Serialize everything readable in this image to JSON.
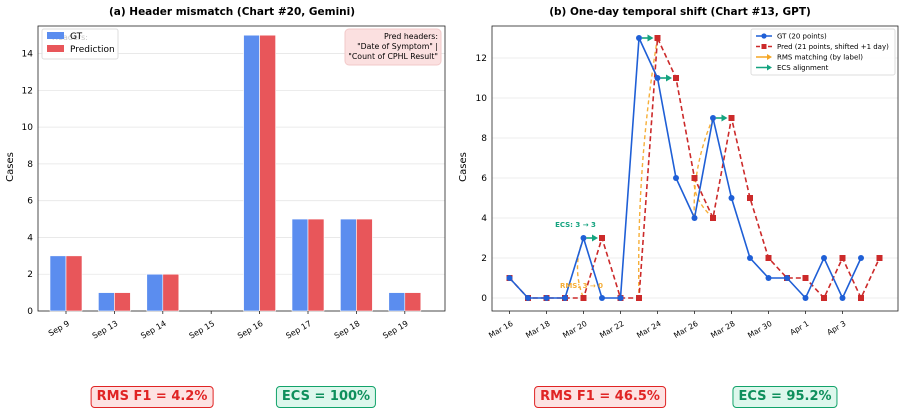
{
  "colors": {
    "gt": "#1f5fd6",
    "gt_bar": "#5b8def",
    "pred": "#cc2a2a",
    "pred_bar": "#e8565a",
    "rms": "#f5a623",
    "ecs": "#14a37f"
  },
  "chart_data": [
    {
      "type": "bar",
      "title": "(a) Header mismatch (Chart #20, Gemini)",
      "ylabel": "Cases",
      "ylim": [
        0,
        15.5
      ],
      "yticks": [
        0,
        2,
        4,
        6,
        8,
        10,
        12,
        14
      ],
      "grid": true,
      "legend_position": "top-left",
      "categories": [
        "Sep 9",
        "Sep 13",
        "Sep 14",
        "Sep 15",
        "Sep 16",
        "Sep 17",
        "Sep 18",
        "Sep 19"
      ],
      "series": [
        {
          "name": "GT",
          "values": [
            3,
            1,
            2,
            0,
            15,
            5,
            5,
            1
          ]
        },
        {
          "name": "Prediction",
          "values": [
            3,
            1,
            2,
            0,
            15,
            5,
            5,
            1
          ]
        }
      ],
      "legend_ghost": "Headers:",
      "annotation": "Pred headers:\n\"Date of Symptom\" |\n\"Count of CPHL Result\"",
      "metrics": {
        "rms": "RMS F1 = 4.2%",
        "ecs": "ECS = 100%"
      }
    },
    {
      "type": "line",
      "title": "(b) One-day temporal shift (Chart #13, GPT)",
      "ylabel": "Cases",
      "ylim": [
        -0.65,
        13.6
      ],
      "yticks": [
        0,
        2,
        4,
        6,
        8,
        10,
        12
      ],
      "grid": true,
      "legend_position": "top-right",
      "x_ticks": [
        "Mar 16",
        "Mar 18",
        "Mar 20",
        "Mar 22",
        "Mar 24",
        "Mar 26",
        "Mar 28",
        "Mar 30",
        "Apr 1",
        "Apr 3"
      ],
      "series": [
        {
          "name": "GT (20 points)",
          "x": [
            "Mar 16",
            "Mar 17",
            "Mar 18",
            "Mar 19",
            "Mar 20",
            "Mar 21",
            "Mar 22",
            "Mar 23",
            "Mar 24",
            "Mar 25",
            "Mar 26",
            "Mar 27",
            "Mar 28",
            "Mar 29",
            "Mar 30",
            "Mar 31",
            "Apr 1",
            "Apr 2",
            "Apr 3",
            "Apr 4"
          ],
          "values": [
            1,
            0,
            0,
            0,
            3,
            0,
            0,
            13,
            11,
            6,
            4,
            9,
            5,
            2,
            1,
            1,
            0,
            2,
            0,
            2
          ]
        },
        {
          "name": "Pred (21 points, shifted +1 day)",
          "x": [
            "Mar 16",
            "Mar 17",
            "Mar 18",
            "Mar 19",
            "Mar 20",
            "Mar 21",
            "Mar 22",
            "Mar 23",
            "Mar 24",
            "Mar 25",
            "Mar 26",
            "Mar 27",
            "Mar 28",
            "Mar 29",
            "Mar 30",
            "Mar 31",
            "Apr 1",
            "Apr 2",
            "Apr 3",
            "Apr 4",
            "Apr 5"
          ],
          "values": [
            1,
            0,
            0,
            0,
            0,
            3,
            0,
            0,
            13,
            11,
            6,
            4,
            9,
            5,
            2,
            1,
            1,
            0,
            2,
            0,
            2
          ]
        }
      ],
      "legend_extra": [
        "RMS matching (by label)",
        "ECS alignment"
      ],
      "ecs_arrows": [
        [
          "Mar 20",
          "Mar 21",
          3
        ],
        [
          "Mar 23",
          "Mar 24",
          13
        ],
        [
          "Mar 24",
          "Mar 25",
          11
        ],
        [
          "Mar 27",
          "Mar 28",
          9
        ]
      ],
      "rms_arcs": [
        [
          "Mar 20",
          "Mar 20",
          3,
          0
        ],
        [
          "Mar 24",
          "Mar 23",
          13,
          0
        ],
        [
          "Mar 26",
          "Mar 27",
          6,
          4
        ],
        [
          "Mar 27",
          "Mar 26",
          9,
          4
        ]
      ],
      "annotations": [
        {
          "text": "ECS: 3 → 3",
          "x": "Mar 20",
          "y": 3
        },
        {
          "text": "RMS: 3 → 0",
          "x": "Mar 20",
          "y": 0
        }
      ],
      "metrics": {
        "rms": "RMS F1 = 46.5%",
        "ecs": "ECS = 95.2%"
      }
    }
  ]
}
